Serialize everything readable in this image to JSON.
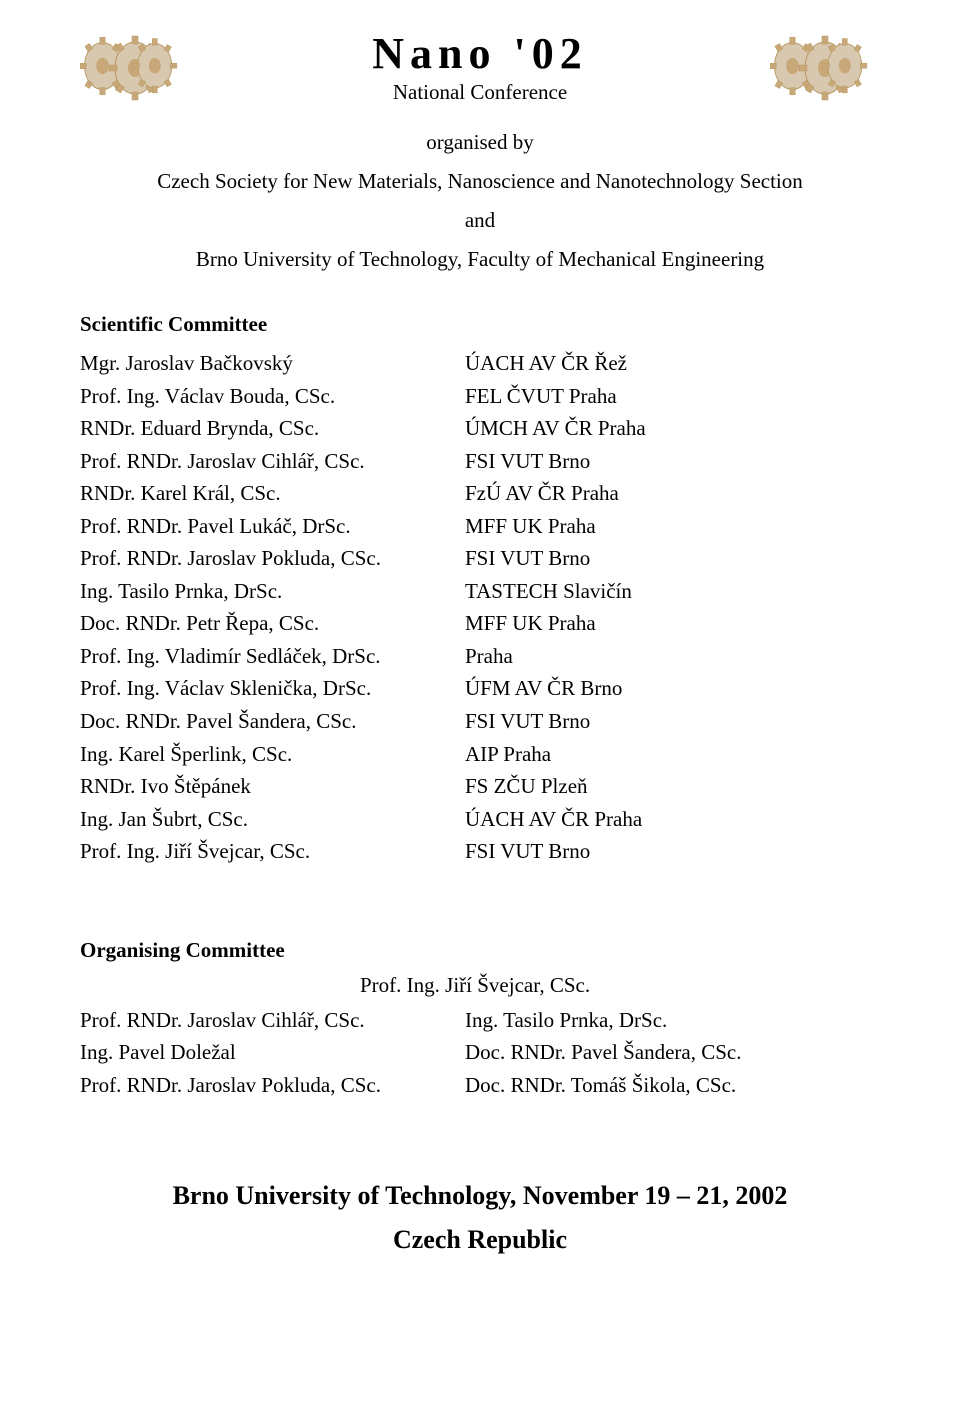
{
  "header": {
    "title": "Nano '02",
    "subtitle": "National Conference",
    "organised_by": "organised by",
    "line1": "Czech Society for New Materials, Nanoscience and Nanotechnology Section",
    "and": "and",
    "line2": "Brno University of Technology, Faculty of Mechanical Engineering"
  },
  "scientific": {
    "title": "Scientific Committee",
    "rows": [
      {
        "name": "Mgr. Jaroslav Bačkovský",
        "affil": "ÚACH AV ČR Řež"
      },
      {
        "name": "Prof. Ing. Václav Bouda, CSc.",
        "affil": "FEL ČVUT Praha"
      },
      {
        "name": "RNDr. Eduard Brynda, CSc.",
        "affil": "ÚMCH AV ČR Praha"
      },
      {
        "name": "Prof. RNDr. Jaroslav Cihlář, CSc.",
        "affil": "FSI VUT Brno"
      },
      {
        "name": "RNDr. Karel Král, CSc.",
        "affil": "FzÚ AV ČR Praha"
      },
      {
        "name": "Prof. RNDr. Pavel Lukáč, DrSc.",
        "affil": "MFF UK Praha"
      },
      {
        "name": "Prof. RNDr. Jaroslav Pokluda, CSc.",
        "affil": "FSI VUT Brno"
      },
      {
        "name": "Ing. Tasilo Prnka, DrSc.",
        "affil": "TASTECH Slavičín"
      },
      {
        "name": "Doc. RNDr. Petr Řepa, CSc.",
        "affil": "MFF UK Praha"
      },
      {
        "name": "Prof. Ing. Vladimír Sedláček, DrSc.",
        "affil": "Praha"
      },
      {
        "name": "Prof. Ing. Václav Sklenička, DrSc.",
        "affil": "ÚFM AV ČR Brno"
      },
      {
        "name": "Doc. RNDr. Pavel Šandera, CSc.",
        "affil": "FSI VUT Brno"
      },
      {
        "name": "Ing. Karel Šperlink, CSc.",
        "affil": "AIP Praha"
      },
      {
        "name": "RNDr. Ivo Štěpánek",
        "affil": "FS ZČU Plzeň"
      },
      {
        "name": "Ing. Jan Šubrt, CSc.",
        "affil": "ÚACH AV ČR Praha"
      },
      {
        "name": "Prof. Ing. Jiří Švejcar, CSc.",
        "affil": "FSI VUT Brno"
      }
    ]
  },
  "organising": {
    "title": "Organising Committee",
    "chair": "Prof. Ing. Jiří Švejcar, CSc.",
    "col1": [
      "Prof. RNDr. Jaroslav Cihlář, CSc.",
      "Ing. Pavel Doležal",
      "Prof. RNDr. Jaroslav Pokluda, CSc."
    ],
    "col2": [
      "Ing. Tasilo Prnka, DrSc.",
      "Doc. RNDr. Pavel Šandera, CSc.",
      "Doc. RNDr. Tomáš Šikola, CSc."
    ]
  },
  "footer": {
    "line1": "Brno University of Technology, November 19 – 21, 2002",
    "line2": "Czech Republic"
  },
  "gear_svg": {
    "body_fill": "#d8c8b0",
    "teeth_fill": "#c8a878",
    "shadow": "#b89860"
  }
}
